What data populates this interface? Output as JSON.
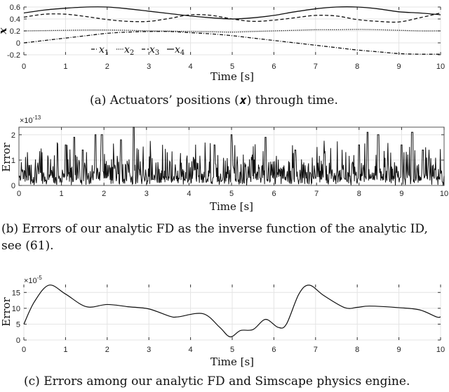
{
  "figure": {
    "panels": [
      {
        "id": "a",
        "caption": "(a) Actuators’ positions (𝒙) through time.",
        "ylabel": "x",
        "xlabel": "Time [s]"
      },
      {
        "id": "b",
        "caption": "(b) Errors of our analytic FD as the inverse function of the analytic ID, see (61).",
        "ylabel": "Error",
        "xlabel": "Time [s]",
        "exponent": "×10",
        "exponent_power": "-13"
      },
      {
        "id": "c",
        "caption": "(c) Errors among our analytic FD and Simscape physics engine.",
        "ylabel": "Error",
        "xlabel": "Time [s]",
        "exponent": "×10",
        "exponent_power": "-5"
      }
    ]
  },
  "chart_data": [
    {
      "type": "line",
      "title": "Actuators' positions (x) through time.",
      "xlabel": "Time [s]",
      "ylabel": "x",
      "xlim": [
        0,
        10
      ],
      "ylim": [
        -0.2,
        0.6
      ],
      "xticks": [
        0,
        1,
        2,
        3,
        4,
        5,
        6,
        7,
        8,
        9,
        10
      ],
      "yticks": [
        -0.2,
        0,
        0.2,
        0.4,
        0.6
      ],
      "ytick_labels": [
        "-0.2",
        "0",
        "0.2",
        "0.4",
        "0.6"
      ],
      "grid": true,
      "legend": [
        "x1",
        "x2",
        "x3",
        "x4"
      ],
      "legend_position": "lower center (inside)",
      "x": [
        0,
        0.5,
        1,
        1.5,
        2,
        2.5,
        3,
        3.5,
        4,
        4.5,
        5,
        5.5,
        6,
        6.5,
        7,
        7.5,
        8,
        8.5,
        9,
        9.5,
        10
      ],
      "series": [
        {
          "name": "x1",
          "style": "dash-dot",
          "values": [
            0.0,
            0.04,
            0.08,
            0.12,
            0.16,
            0.18,
            0.19,
            0.19,
            0.17,
            0.15,
            0.12,
            0.08,
            0.04,
            0.0,
            -0.04,
            -0.08,
            -0.12,
            -0.15,
            -0.18,
            -0.19,
            -0.19
          ]
        },
        {
          "name": "x2",
          "style": "dotted",
          "values": [
            0.2,
            0.205,
            0.21,
            0.215,
            0.215,
            0.21,
            0.2,
            0.195,
            0.19,
            0.185,
            0.18,
            0.19,
            0.2,
            0.21,
            0.22,
            0.22,
            0.225,
            0.22,
            0.21,
            0.2,
            0.2
          ]
        },
        {
          "name": "x3",
          "style": "dashed",
          "values": [
            0.43,
            0.48,
            0.48,
            0.44,
            0.39,
            0.36,
            0.36,
            0.41,
            0.47,
            0.46,
            0.4,
            0.36,
            0.38,
            0.42,
            0.46,
            0.45,
            0.39,
            0.36,
            0.35,
            0.42,
            0.5
          ]
        },
        {
          "name": "x4",
          "style": "solid",
          "values": [
            0.5,
            0.55,
            0.58,
            0.6,
            0.6,
            0.57,
            0.53,
            0.49,
            0.45,
            0.42,
            0.4,
            0.42,
            0.46,
            0.52,
            0.57,
            0.6,
            0.6,
            0.57,
            0.52,
            0.5,
            0.47
          ]
        }
      ]
    },
    {
      "type": "line",
      "title": "Errors of our analytic FD as the inverse function of the analytic ID",
      "xlabel": "Time [s]",
      "ylabel": "Error",
      "y_multiplier": "1e-13",
      "xlim": [
        0,
        10
      ],
      "ylim": [
        0,
        2.3
      ],
      "xticks": [
        0,
        1,
        2,
        3,
        4,
        5,
        6,
        7,
        8,
        9,
        10
      ],
      "yticks": [
        0,
        1,
        2
      ],
      "grid": true,
      "description": "noisy signal, mostly 0-1, spikes up to ~2.3 at t~2.7",
      "x": [
        0,
        0.5,
        1,
        1.1,
        1.3,
        1.5,
        1.8,
        1.95,
        2.4,
        2.7,
        3.0,
        3.5,
        4.0,
        4.6,
        5.0,
        5.8,
        6.5,
        7.0,
        7.5,
        8.0,
        8.2,
        8.45,
        9.0,
        9.25,
        9.5,
        10
      ],
      "values": [
        0.6,
        1.1,
        0.8,
        1.6,
        1.9,
        1.4,
        2.0,
        2.0,
        1.8,
        2.3,
        1.2,
        1.0,
        0.9,
        1.6,
        2.0,
        1.9,
        1.4,
        1.3,
        1.2,
        1.6,
        2.1,
        2.0,
        1.6,
        2.1,
        1.4,
        0.6
      ]
    },
    {
      "type": "line",
      "title": "Errors among our analytic FD and Simscape physics engine",
      "xlabel": "Time [s]",
      "ylabel": "Error",
      "y_multiplier": "1e-5",
      "xlim": [
        0,
        10
      ],
      "ylim": [
        0,
        17.5
      ],
      "xticks": [
        0,
        1,
        2,
        3,
        4,
        5,
        6,
        7,
        8,
        9,
        10
      ],
      "yticks": [
        0,
        5,
        10,
        15
      ],
      "grid": true,
      "x": [
        0,
        0.25,
        0.6,
        1,
        1.5,
        2,
        2.5,
        3,
        3.5,
        3.7,
        4.3,
        4.7,
        4.95,
        5.2,
        5.5,
        5.8,
        6.1,
        6.3,
        6.6,
        6.85,
        7.2,
        7.7,
        8,
        8.3,
        9,
        9.5,
        9.9,
        10
      ],
      "values": [
        5,
        12,
        17.3,
        14.5,
        10.5,
        11.2,
        10.5,
        9.8,
        7.5,
        7.3,
        8.3,
        4.0,
        1.0,
        3.0,
        3.3,
        6.5,
        4.0,
        5.0,
        14.5,
        17.3,
        14.0,
        10.2,
        10.3,
        10.7,
        10.2,
        9.5,
        7.3,
        7.3
      ]
    }
  ]
}
